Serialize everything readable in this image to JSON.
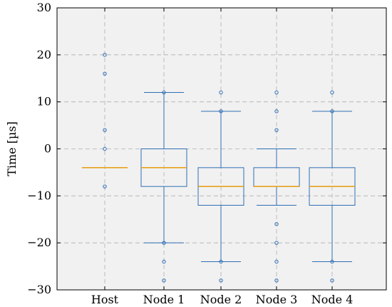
{
  "chart_data": {
    "type": "box",
    "ylabel": "Time [µs]",
    "xlabel": "",
    "title": "",
    "ylim": [
      -30,
      30
    ],
    "yticks": [
      30,
      20,
      10,
      0,
      -10,
      -20,
      -30
    ],
    "grid": true,
    "colors": {
      "box": "#2f6fb5",
      "median": "#e8a21c",
      "grid": "#b0b0b0",
      "background": "#f1f1f1",
      "axes": "#000000"
    },
    "categories": [
      "Host",
      "Node 1",
      "Node 2",
      "Node 3",
      "Node 4"
    ],
    "boxes": [
      {
        "name": "Host",
        "q1": -4,
        "median": -4,
        "q3": -4,
        "whisker_low": -4,
        "whisker_high": -4,
        "outliers": [
          20,
          16,
          4,
          0,
          -8
        ]
      },
      {
        "name": "Node 1",
        "q1": -8,
        "median": -4,
        "q3": 0,
        "whisker_low": -20,
        "whisker_high": 12,
        "outliers": [
          12,
          -20,
          -24,
          -28
        ]
      },
      {
        "name": "Node 2",
        "q1": -12,
        "median": -8,
        "q3": -4,
        "whisker_low": -24,
        "whisker_high": 8,
        "outliers": [
          12,
          8,
          -24,
          -28
        ]
      },
      {
        "name": "Node 3",
        "q1": -8,
        "median": -8,
        "q3": -4,
        "whisker_low": -12,
        "whisker_high": 0,
        "outliers": [
          12,
          8,
          4,
          -16,
          -20,
          -24,
          -28
        ]
      },
      {
        "name": "Node 4",
        "q1": -12,
        "median": -8,
        "q3": -4,
        "whisker_low": -24,
        "whisker_high": 8,
        "outliers": [
          12,
          8,
          -24,
          -28
        ]
      }
    ]
  }
}
